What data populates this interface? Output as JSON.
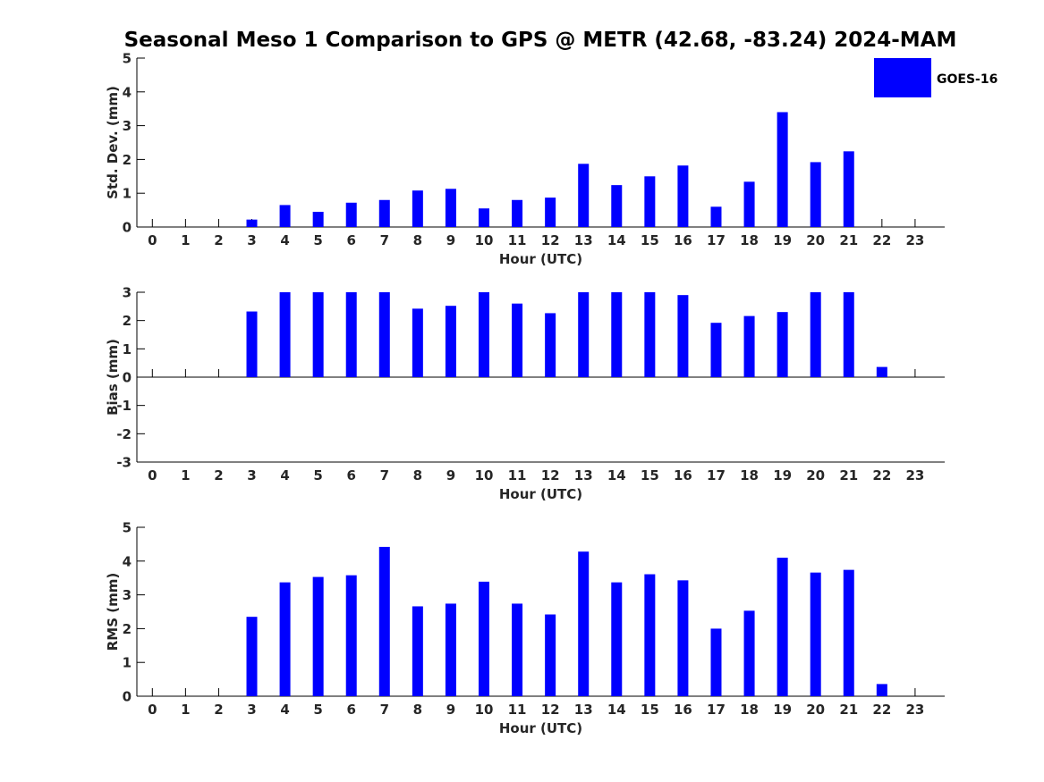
{
  "title": "Seasonal Meso 1 Comparison to GPS @ METR (42.68, -83.24) 2024-MAM",
  "legend": {
    "label": "GOES-16",
    "color": "#0000ff",
    "placement": "top-right"
  },
  "chart_data": [
    {
      "type": "bar",
      "xlabel": "Hour (UTC)",
      "ylabel": "Std. Dev. (mm)",
      "ylim": [
        0,
        5
      ],
      "yticks": [
        0,
        1,
        2,
        3,
        4,
        5
      ],
      "categories": [
        0,
        1,
        2,
        3,
        4,
        5,
        6,
        7,
        8,
        9,
        10,
        11,
        12,
        13,
        14,
        15,
        16,
        17,
        18,
        19,
        20,
        21,
        22,
        23
      ],
      "series": [
        {
          "name": "GOES-16",
          "values": [
            0,
            0,
            0,
            0.22,
            0.65,
            0.45,
            0.72,
            0.8,
            1.08,
            1.13,
            0.55,
            0.8,
            0.87,
            1.87,
            1.24,
            1.5,
            1.82,
            0.6,
            1.34,
            3.4,
            1.92,
            2.24,
            0,
            0
          ]
        }
      ]
    },
    {
      "type": "bar",
      "xlabel": "Hour (UTC)",
      "ylabel": "Bias (mm)",
      "ylim": [
        -3,
        3
      ],
      "yticks": [
        -3,
        -2,
        -1,
        0,
        1,
        2,
        3
      ],
      "categories": [
        0,
        1,
        2,
        3,
        4,
        5,
        6,
        7,
        8,
        9,
        10,
        11,
        12,
        13,
        14,
        15,
        16,
        17,
        18,
        19,
        20,
        21,
        22,
        23
      ],
      "series": [
        {
          "name": "GOES-16",
          "values": [
            0,
            0,
            0,
            2.32,
            3,
            3,
            3,
            3,
            2.42,
            2.52,
            3,
            2.6,
            2.26,
            3,
            3,
            3,
            2.9,
            1.92,
            2.16,
            2.3,
            3,
            3,
            0.36,
            0
          ]
        }
      ]
    },
    {
      "type": "bar",
      "xlabel": "Hour (UTC)",
      "ylabel": "RMS (mm)",
      "ylim": [
        0,
        5
      ],
      "yticks": [
        0,
        1,
        2,
        3,
        4,
        5
      ],
      "categories": [
        0,
        1,
        2,
        3,
        4,
        5,
        6,
        7,
        8,
        9,
        10,
        11,
        12,
        13,
        14,
        15,
        16,
        17,
        18,
        19,
        20,
        21,
        22,
        23
      ],
      "series": [
        {
          "name": "GOES-16",
          "values": [
            0,
            0,
            0,
            2.35,
            3.37,
            3.53,
            3.58,
            4.42,
            2.66,
            2.74,
            3.39,
            2.74,
            2.42,
            4.28,
            3.37,
            3.61,
            3.43,
            2.0,
            2.53,
            4.1,
            3.66,
            3.74,
            0.36,
            0
          ]
        }
      ]
    }
  ]
}
